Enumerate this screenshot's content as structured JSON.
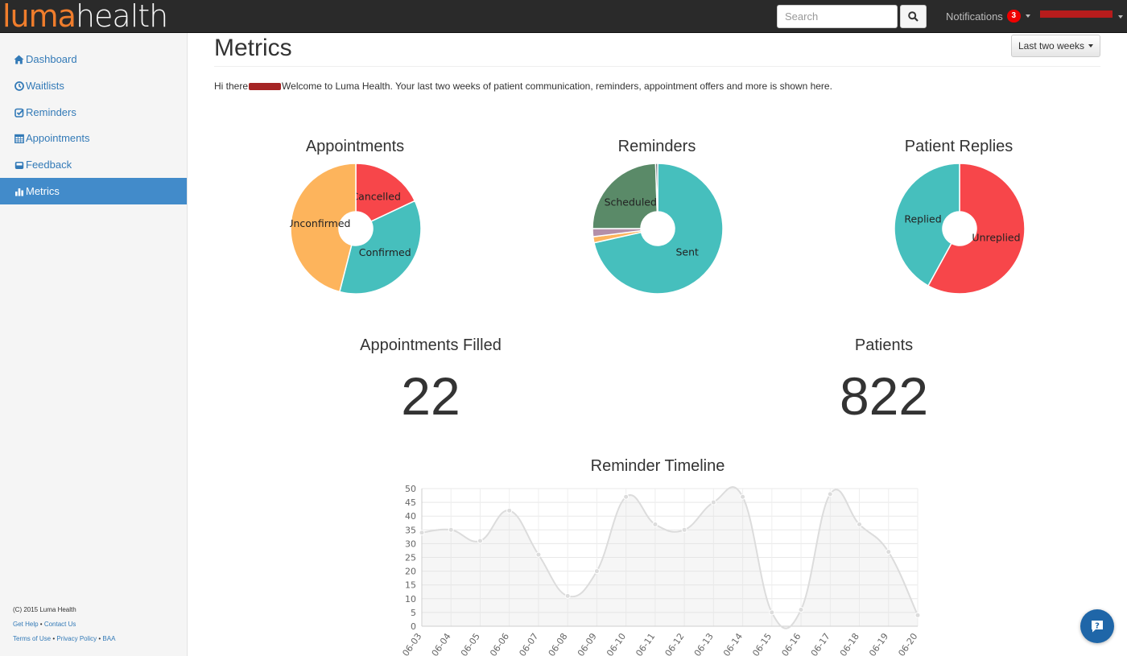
{
  "header": {
    "logo_part1": "luma",
    "logo_part2": "health",
    "search_placeholder": "Search",
    "notifications_label": "Notifications",
    "notifications_count": "3"
  },
  "sidebar": {
    "items": [
      {
        "label": "Dashboard",
        "icon": "home-icon"
      },
      {
        "label": "Waitlists",
        "icon": "clock-icon"
      },
      {
        "label": "Reminders",
        "icon": "check-square-icon"
      },
      {
        "label": "Appointments",
        "icon": "calendar-icon"
      },
      {
        "label": "Feedback",
        "icon": "inbox-icon"
      },
      {
        "label": "Metrics",
        "icon": "bar-chart-icon",
        "active": true
      }
    ],
    "copyright": "(C) 2015 Luma Health",
    "links1": [
      "Get Help",
      "Contact Us"
    ],
    "links2": [
      "Terms of Use",
      "Privacy Policy",
      "BAA"
    ]
  },
  "main": {
    "title": "Metrics",
    "range_button": "Last two weeks",
    "welcome_prefix": "Hi there",
    "welcome_suffix": "Welcome to Luma Health. Your last two weeks of patient communication, reminders, appointment offers and more is shown here.",
    "appointments_filled_label": "Appointments Filled",
    "appointments_filled_value": "22",
    "patients_label": "Patients",
    "patients_value": "822"
  },
  "colors": {
    "accent": "#428bca",
    "red": "#f7464a",
    "teal": "#46bfbd",
    "yellow": "#fdb45c",
    "green": "#5a8a68",
    "purple": "#b48fa8"
  },
  "chart_data": [
    {
      "type": "pie",
      "title": "Appointments",
      "slices": [
        {
          "label": "Cancelled",
          "value": 18,
          "color": "#f7464a"
        },
        {
          "label": "Confirmed",
          "value": 36,
          "color": "#46bfbd"
        },
        {
          "label": "Unconfirmed",
          "value": 46,
          "color": "#fdb45c"
        }
      ]
    },
    {
      "type": "pie",
      "title": "Reminders",
      "slices": [
        {
          "label": "Sent",
          "value": 71.5,
          "color": "#46bfbd"
        },
        {
          "label": "",
          "value": 1.5,
          "color": "#fdb45c"
        },
        {
          "label": "",
          "value": 2,
          "color": "#b48fa8"
        },
        {
          "label": "Scheduled",
          "value": 24.5,
          "color": "#5a8a68"
        },
        {
          "label": "",
          "value": 0.5,
          "color": "#3e4a55"
        }
      ]
    },
    {
      "type": "pie",
      "title": "Patient Replies",
      "slices": [
        {
          "label": "Unreplied",
          "value": 58,
          "color": "#f7464a"
        },
        {
          "label": "Replied",
          "value": 42,
          "color": "#46bfbd"
        }
      ]
    },
    {
      "type": "area",
      "title": "Reminder Timeline",
      "x": [
        "2015-06-03",
        "2015-06-04",
        "2015-06-05",
        "2015-06-06",
        "2015-06-07",
        "2015-06-08",
        "2015-06-09",
        "2015-06-10",
        "2015-06-11",
        "2015-06-12",
        "2015-06-13",
        "2015-06-14",
        "2015-06-15",
        "2015-06-16",
        "2015-06-17",
        "2015-06-18",
        "2015-06-19",
        "2015-06-20"
      ],
      "x_tick_labels": [
        "-06-03",
        "-06-04",
        "-06-05",
        "-06-06",
        "-06-07",
        "-06-08",
        "-06-09",
        "-06-10",
        "-06-11",
        "-06-12",
        "-06-13",
        "-06-14",
        "-06-15",
        "-06-16",
        "-06-17",
        "-06-18",
        "-06-19",
        "-06-20"
      ],
      "y": [
        34,
        35,
        31,
        42,
        26,
        11,
        20,
        47,
        37,
        35,
        45,
        47,
        5,
        6,
        48,
        37,
        27,
        4
      ],
      "ylim": [
        0,
        50
      ],
      "yticks": [
        0,
        5,
        10,
        15,
        20,
        25,
        30,
        35,
        40,
        45,
        50
      ],
      "grid": true
    }
  ]
}
